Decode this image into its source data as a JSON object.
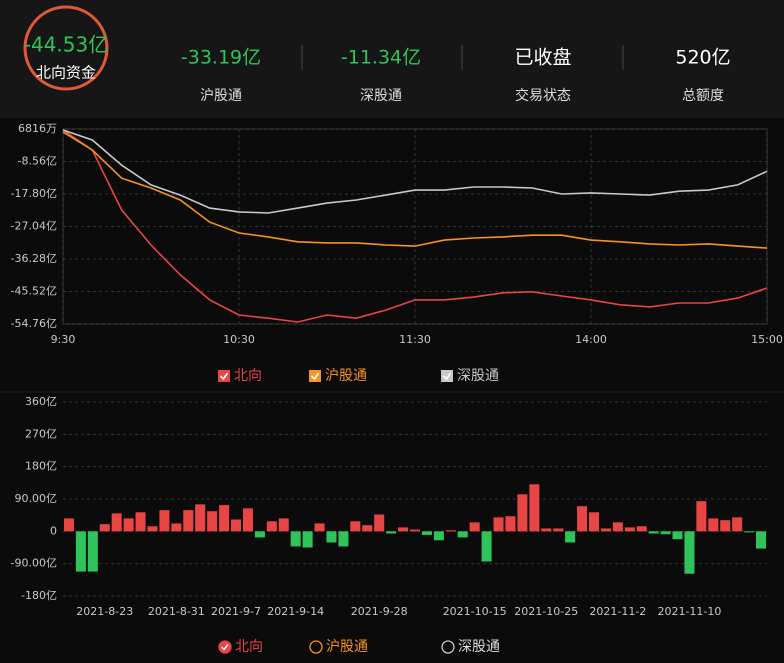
{
  "header": {
    "main": {
      "value": "-44.53亿",
      "label": "北向资金"
    },
    "stats": [
      {
        "value": "-33.19亿",
        "label": "沪股通"
      },
      {
        "value": "-11.34亿",
        "label": "深股通"
      },
      {
        "value": "已收盘",
        "label": "交易状态"
      },
      {
        "value": "520亿",
        "label": "总额度"
      }
    ]
  },
  "chart_data": [
    {
      "type": "line",
      "categories": [
        "9:30",
        null,
        null,
        null,
        null,
        null,
        "10:30",
        null,
        null,
        null,
        null,
        null,
        "11:30",
        null,
        null,
        null,
        null,
        null,
        "14:00",
        null,
        null,
        null,
        null,
        null,
        "15:00"
      ],
      "series": [
        {
          "name": "北向",
          "color": "#e84545",
          "values": [
            0.4,
            -5.29,
            -22.35,
            -32.3,
            -40.8,
            -47.9,
            -52.2,
            -53.1,
            -54.2,
            -52.2,
            -53.1,
            -50.8,
            -47.9,
            -47.9,
            -47.1,
            -45.9,
            -45.6,
            -46.8,
            -47.9,
            -49.3,
            -49.9,
            -48.8,
            -48.8,
            -47.4,
            -44.53
          ]
        },
        {
          "name": "沪股通",
          "color": "#f7931e",
          "values": [
            -0.17,
            -5.3,
            -13.3,
            -16.1,
            -19.5,
            -25.8,
            -28.9,
            -30.0,
            -31.4,
            -31.7,
            -31.7,
            -32.3,
            -32.6,
            -30.9,
            -30.3,
            -30.0,
            -29.5,
            -29.5,
            -30.9,
            -31.4,
            -32.0,
            -32.3,
            -32.0,
            -32.6,
            -33.19
          ]
        },
        {
          "name": "深股通",
          "color": "#c8c8c8",
          "values": [
            0.4,
            -2.45,
            -9.6,
            -15.2,
            -18.1,
            -21.8,
            -22.9,
            -23.2,
            -21.8,
            -20.4,
            -19.5,
            -18.1,
            -16.7,
            -16.7,
            -15.8,
            -15.8,
            -16.1,
            -17.8,
            -17.5,
            -17.8,
            -18.1,
            -17.0,
            -16.7,
            -15.2,
            -11.34
          ]
        }
      ],
      "ylim": [
        -54.76,
        0.6816
      ],
      "yticks": [
        {
          "value": 0.6816,
          "label": "6816万"
        },
        {
          "value": -8.56,
          "label": "-8.56亿"
        },
        {
          "value": -17.8,
          "label": "-17.80亿"
        },
        {
          "value": -27.04,
          "label": "-27.04亿"
        },
        {
          "value": -36.28,
          "label": "-36.28亿"
        },
        {
          "value": -45.52,
          "label": "-45.52亿"
        },
        {
          "value": -54.76,
          "label": "-54.76亿"
        }
      ],
      "grid": true
    },
    {
      "type": "bar",
      "categories": [
        null,
        null,
        null,
        "2021-8-23",
        null,
        null,
        null,
        null,
        null,
        "2021-8-31",
        null,
        null,
        null,
        null,
        "2021-9-7",
        null,
        null,
        null,
        null,
        "2021-9-14",
        null,
        null,
        null,
        null,
        null,
        null,
        "2021-9-28",
        null,
        null,
        null,
        null,
        null,
        null,
        null,
        "2021-10-15",
        null,
        null,
        null,
        null,
        null,
        "2021-10-25",
        null,
        null,
        null,
        null,
        null,
        "2021-11-2",
        null,
        null,
        null,
        null,
        null,
        "2021-11-10",
        null,
        null,
        null,
        null,
        null,
        null
      ],
      "series": [
        {
          "name": "北向",
          "color": "#e84545",
          "selected": true,
          "values": [
            36,
            -112,
            -112,
            20,
            50,
            36,
            53,
            14,
            59,
            22,
            59,
            75,
            56,
            73,
            33,
            64,
            -17,
            28,
            36,
            -42,
            -45,
            22,
            -31,
            -42,
            28,
            17,
            47,
            -6,
            11,
            5,
            -10,
            -25,
            3,
            -17,
            25,
            -84,
            39,
            42,
            103,
            131,
            8,
            8,
            -31,
            70,
            53,
            8,
            25,
            11,
            14,
            -6,
            -8,
            -22,
            -118,
            84,
            36,
            31,
            39,
            -3,
            -48
          ]
        },
        {
          "name": "沪股通",
          "color": "#f7931e",
          "selected": false
        },
        {
          "name": "深股通",
          "color": "#c8c8c8",
          "selected": false
        }
      ],
      "negative_color": "#2ec45a",
      "ylim": [
        -180,
        360
      ],
      "yticks": [
        {
          "value": 360,
          "label": "360亿"
        },
        {
          "value": 270,
          "label": "270亿"
        },
        {
          "value": 180,
          "label": "180亿"
        },
        {
          "value": 90,
          "label": "90.00亿"
        },
        0,
        {
          "value": -90,
          "label": "-90.00亿"
        },
        {
          "value": -180,
          "label": "-180亿"
        }
      ],
      "grid": true
    }
  ]
}
